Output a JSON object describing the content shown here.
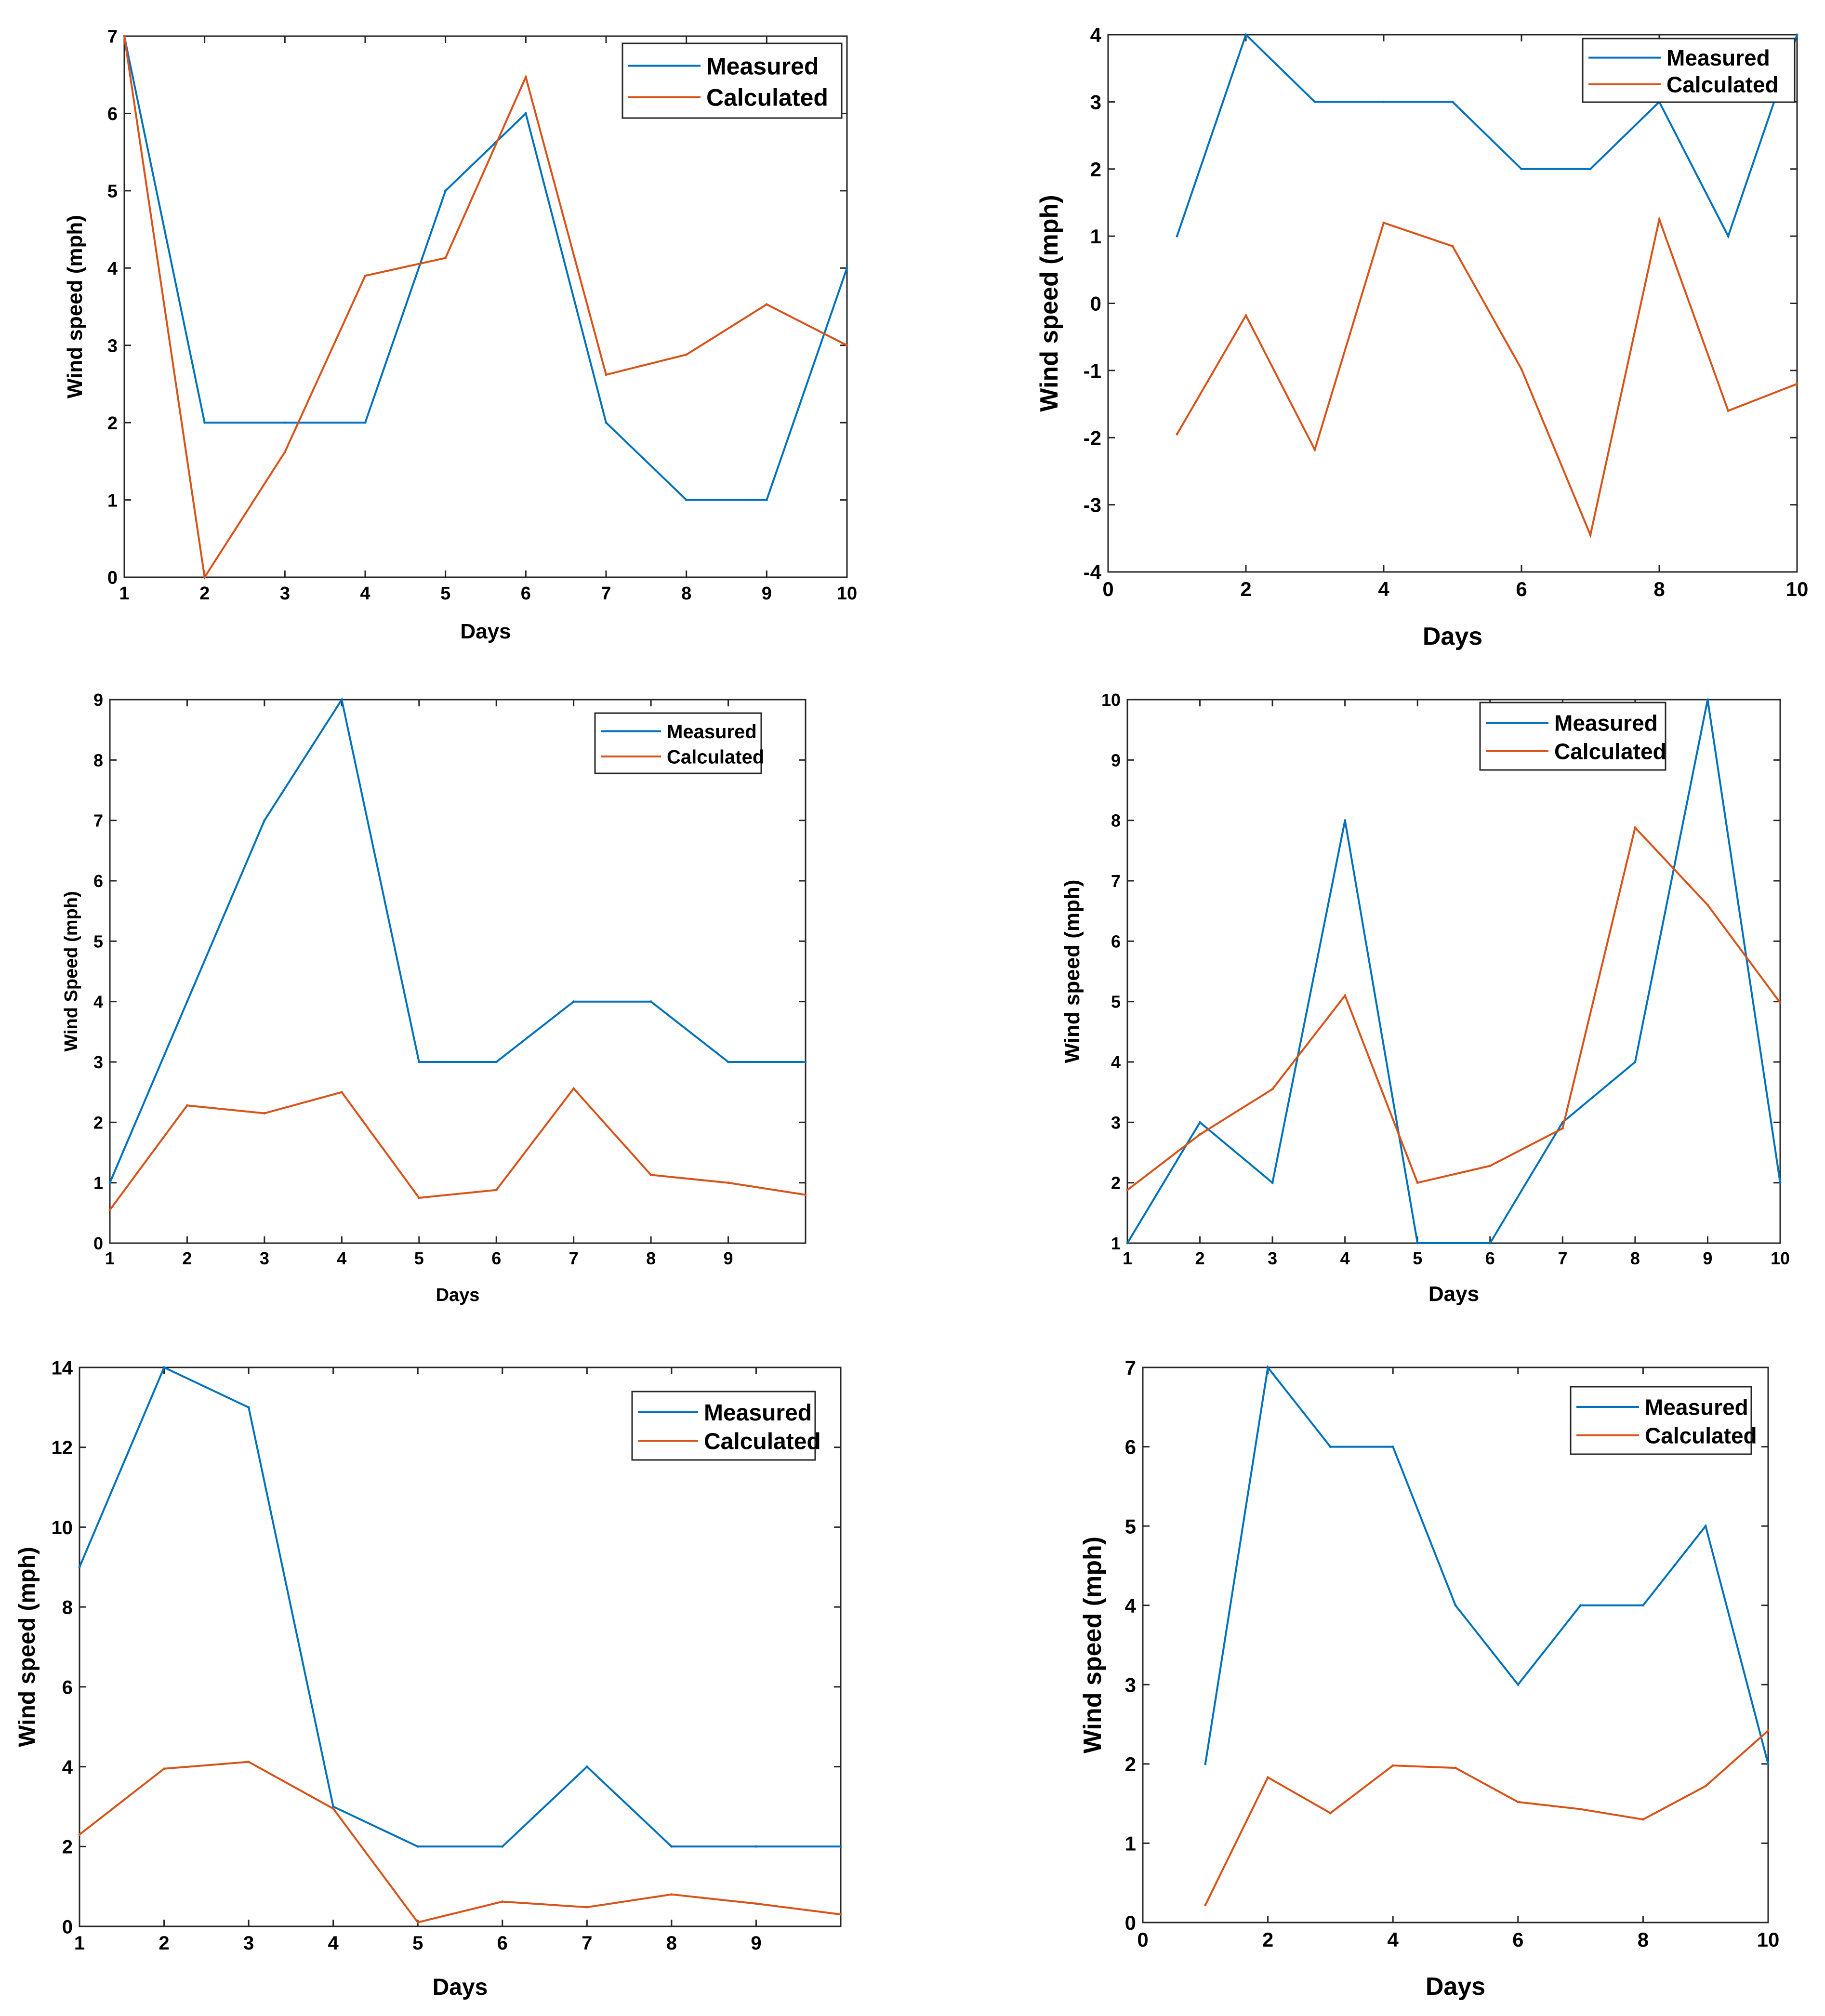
{
  "colors": {
    "measured": "#0072BD",
    "calculated": "#D95319"
  },
  "chart_data": [
    {
      "type": "line",
      "title": "",
      "xlabel": "Days",
      "ylabel": "Wind speed (mph)",
      "xlim": [
        1,
        10
      ],
      "ylim": [
        0,
        7
      ],
      "xticks": [
        1,
        2,
        3,
        4,
        5,
        6,
        7,
        8,
        9,
        10
      ],
      "yticks": [
        0,
        1,
        2,
        3,
        4,
        5,
        6,
        7
      ],
      "legend_position": "top-right",
      "series": [
        {
          "name": "Measured",
          "color": "#0072BD",
          "x": [
            1,
            2,
            3,
            4,
            5,
            6,
            7,
            8,
            9,
            10
          ],
          "values": [
            7,
            2,
            2,
            2,
            5,
            6,
            2,
            1,
            1,
            4
          ]
        },
        {
          "name": "Calculated",
          "color": "#D95319",
          "x": [
            1,
            2,
            3,
            4,
            5,
            6,
            7,
            8,
            9,
            10
          ],
          "values": [
            7.0,
            0.0,
            1.62,
            3.9,
            4.13,
            6.47,
            2.62,
            2.88,
            3.53,
            3.0
          ]
        }
      ]
    },
    {
      "type": "line",
      "title": "",
      "xlabel": "Days",
      "ylabel": "Wind speed (mph)",
      "xlim": [
        0,
        10
      ],
      "ylim": [
        -4,
        4
      ],
      "xticks": [
        0,
        2,
        4,
        6,
        8,
        10
      ],
      "yticks": [
        -4,
        -3,
        -2,
        -1,
        0,
        1,
        2,
        3,
        4
      ],
      "legend_position": "top-right",
      "series": [
        {
          "name": "Measured",
          "color": "#0072BD",
          "x": [
            1,
            2,
            3,
            4,
            5,
            6,
            7,
            8,
            9,
            10
          ],
          "values": [
            1,
            4,
            3,
            3,
            3,
            2,
            2,
            3,
            1,
            4
          ]
        },
        {
          "name": "Calculated",
          "color": "#D95319",
          "x": [
            1,
            2,
            3,
            4,
            5,
            6,
            7,
            8,
            9,
            10
          ],
          "values": [
            -1.95,
            -0.18,
            -2.18,
            1.2,
            0.85,
            -0.98,
            -3.45,
            1.25,
            -1.6,
            -1.2
          ]
        }
      ]
    },
    {
      "type": "line",
      "title": "",
      "xlabel": "Days",
      "ylabel": "Wind Speed (mph)",
      "xlim": [
        1,
        10
      ],
      "ylim": [
        0,
        9
      ],
      "xticks": [
        1,
        2,
        3,
        4,
        5,
        6,
        7,
        8,
        9
      ],
      "yticks": [
        0,
        1,
        2,
        3,
        4,
        5,
        6,
        7,
        8,
        9
      ],
      "legend_position": "top-right",
      "series": [
        {
          "name": "Measured",
          "color": "#0072BD",
          "x": [
            1,
            2,
            3,
            4,
            5,
            6,
            7,
            8,
            9,
            10
          ],
          "values": [
            1,
            4,
            7,
            9,
            3,
            3,
            4,
            4,
            3,
            3
          ]
        },
        {
          "name": "Calculated",
          "color": "#D95319",
          "x": [
            1,
            2,
            3,
            4,
            5,
            6,
            7,
            8,
            9,
            10
          ],
          "values": [
            0.55,
            2.28,
            2.15,
            2.5,
            0.75,
            0.88,
            2.56,
            1.13,
            1.0,
            0.8
          ]
        }
      ]
    },
    {
      "type": "line",
      "title": "",
      "xlabel": "Days",
      "ylabel": "Wind speed (mph)",
      "xlim": [
        1,
        10
      ],
      "ylim": [
        1,
        10
      ],
      "xticks": [
        1,
        2,
        3,
        4,
        5,
        6,
        7,
        8,
        9,
        10
      ],
      "yticks": [
        1,
        2,
        3,
        4,
        5,
        6,
        7,
        8,
        9,
        10
      ],
      "legend_position": "top-right",
      "series": [
        {
          "name": "Measured",
          "color": "#0072BD",
          "x": [
            1,
            2,
            3,
            4,
            5,
            6,
            7,
            8,
            9,
            10
          ],
          "values": [
            1,
            3,
            2,
            8,
            1,
            1,
            3,
            4,
            10,
            2
          ]
        },
        {
          "name": "Calculated",
          "color": "#D95319",
          "x": [
            1,
            2,
            3,
            4,
            5,
            6,
            7,
            8,
            9,
            10
          ],
          "values": [
            1.88,
            2.8,
            3.55,
            5.1,
            2.0,
            2.28,
            2.9,
            7.88,
            6.6,
            4.98
          ]
        }
      ]
    },
    {
      "type": "line",
      "title": "",
      "xlabel": "Days",
      "ylabel": "Wind speed (mph)",
      "xlim": [
        1,
        10
      ],
      "ylim": [
        0,
        14
      ],
      "xticks": [
        1,
        2,
        3,
        4,
        5,
        6,
        7,
        8,
        9
      ],
      "yticks": [
        0,
        2,
        4,
        6,
        8,
        10,
        12,
        14
      ],
      "legend_position": "top-right",
      "series": [
        {
          "name": "Measured",
          "color": "#0072BD",
          "x": [
            1,
            2,
            3,
            4,
            5,
            6,
            7,
            8,
            9,
            10
          ],
          "values": [
            9,
            14,
            13,
            3,
            2,
            2,
            4,
            2,
            2,
            2
          ]
        },
        {
          "name": "Calculated",
          "color": "#D95319",
          "x": [
            1,
            2,
            3,
            4,
            5,
            6,
            7,
            8,
            9,
            10
          ],
          "values": [
            2.3,
            3.95,
            4.12,
            2.95,
            0.1,
            0.62,
            0.48,
            0.8,
            0.57,
            0.3
          ]
        }
      ]
    },
    {
      "type": "line",
      "title": "",
      "xlabel": "Days",
      "ylabel": "Wind speed (mph)",
      "xlim": [
        0,
        10
      ],
      "ylim": [
        0,
        7
      ],
      "xticks": [
        0,
        2,
        4,
        6,
        8,
        10
      ],
      "yticks": [
        0,
        1,
        2,
        3,
        4,
        5,
        6,
        7
      ],
      "legend_position": "top-right",
      "series": [
        {
          "name": "Measured",
          "color": "#0072BD",
          "x": [
            1,
            2,
            3,
            4,
            5,
            6,
            7,
            8,
            9,
            10
          ],
          "values": [
            2,
            7,
            6,
            6,
            4,
            3,
            4,
            4,
            5,
            2
          ]
        },
        {
          "name": "Calculated",
          "color": "#D95319",
          "x": [
            1,
            2,
            3,
            4,
            5,
            6,
            7,
            8,
            9,
            10
          ],
          "values": [
            0.22,
            1.83,
            1.38,
            1.98,
            1.95,
            1.52,
            1.43,
            1.3,
            1.72,
            2.42
          ]
        }
      ]
    }
  ]
}
